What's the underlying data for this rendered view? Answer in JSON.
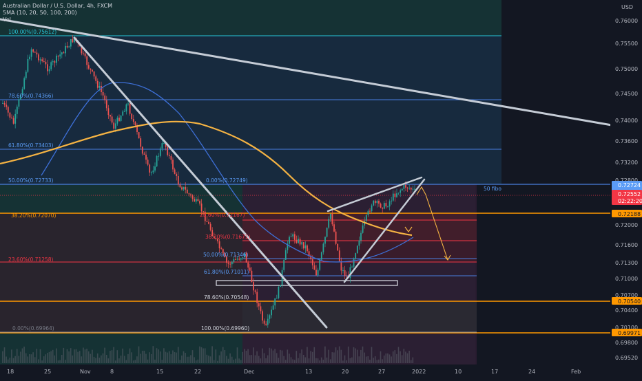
{
  "header": {
    "title": "Australian Dollar / U.S. Dollar, 4h, FXCM",
    "indicator": "5MA (10, 20, 50, 100, 200)",
    "volume_label": "Vol"
  },
  "price_axis": {
    "currency": "USD",
    "ticks": [
      "0.76000",
      "0.75500",
      "0.75000",
      "0.74500",
      "0.74000",
      "0.73600",
      "0.73200",
      "0.72800",
      "0.72400",
      "0.72000",
      "0.71600",
      "0.71300",
      "0.71000",
      "0.70700",
      "0.70400",
      "0.70100",
      "0.69800",
      "0.69520"
    ]
  },
  "time_axis": {
    "ticks": [
      "18",
      "25",
      "Nov",
      "8",
      "15",
      "22",
      "Dec",
      "13",
      "20",
      "27",
      "2022",
      "10",
      "17",
      "24",
      "Feb"
    ]
  },
  "fib_left": [
    {
      "label": "100.00%(0.75612)",
      "color": "#26c6da"
    },
    {
      "label": "78.60%(0.74366)",
      "color": "#5b9cf6"
    },
    {
      "label": "61.80%(0.73403)",
      "color": "#5b9cf6"
    },
    {
      "label": "50.00%(0.72733)",
      "color": "#5b9cf6"
    },
    {
      "label": "38.20%(0.72070)",
      "color": "#ff9800"
    },
    {
      "label": "23.60%(0.71258)",
      "color": "#f23645"
    },
    {
      "label": "0.00%(0.69964)",
      "color": "#787b86"
    }
  ],
  "fib_right": [
    {
      "label": "0.00%(0.72749)",
      "color": "#5b9cf6"
    },
    {
      "label": "23.60%(0.72167)",
      "color": "#f23645"
    },
    {
      "label": "38.20%(0.71671)",
      "color": "#f23645"
    },
    {
      "label": "50.00%(0.71346)",
      "color": "#5b9cf6"
    },
    {
      "label": "61.80%(0.71011)",
      "color": "#5b9cf6"
    },
    {
      "label": "78.60%(0.70548)",
      "color": "#d1d4dc"
    },
    {
      "label": "100.00%(0.69960)",
      "color": "#d1d4dc"
    }
  ],
  "annotation": {
    "text": "50 fibo",
    "color": "#5b9cf6"
  },
  "price_tags": [
    {
      "price": "0.72724",
      "color": "#5b9cf6",
      "text_color": "#ffffff"
    },
    {
      "price": "0.72552",
      "time": "02:22:20",
      "color": "#f23645",
      "text_color": "#ffffff"
    },
    {
      "price": "0.72188",
      "color": "#ff9800",
      "text_color": "#131722"
    },
    {
      "price": "0.70540",
      "color": "#ff9800",
      "text_color": "#131722"
    },
    {
      "price": "0.69971",
      "color": "#ff9800",
      "text_color": "#131722"
    }
  ],
  "colors": {
    "background": "#131722",
    "up": "#26a69a",
    "down": "#ef5350",
    "ma_blue": "#2962ff",
    "ma_orange": "#ffb74d",
    "trendline": "#c5ccd6",
    "orange_line": "#ff9800"
  }
}
